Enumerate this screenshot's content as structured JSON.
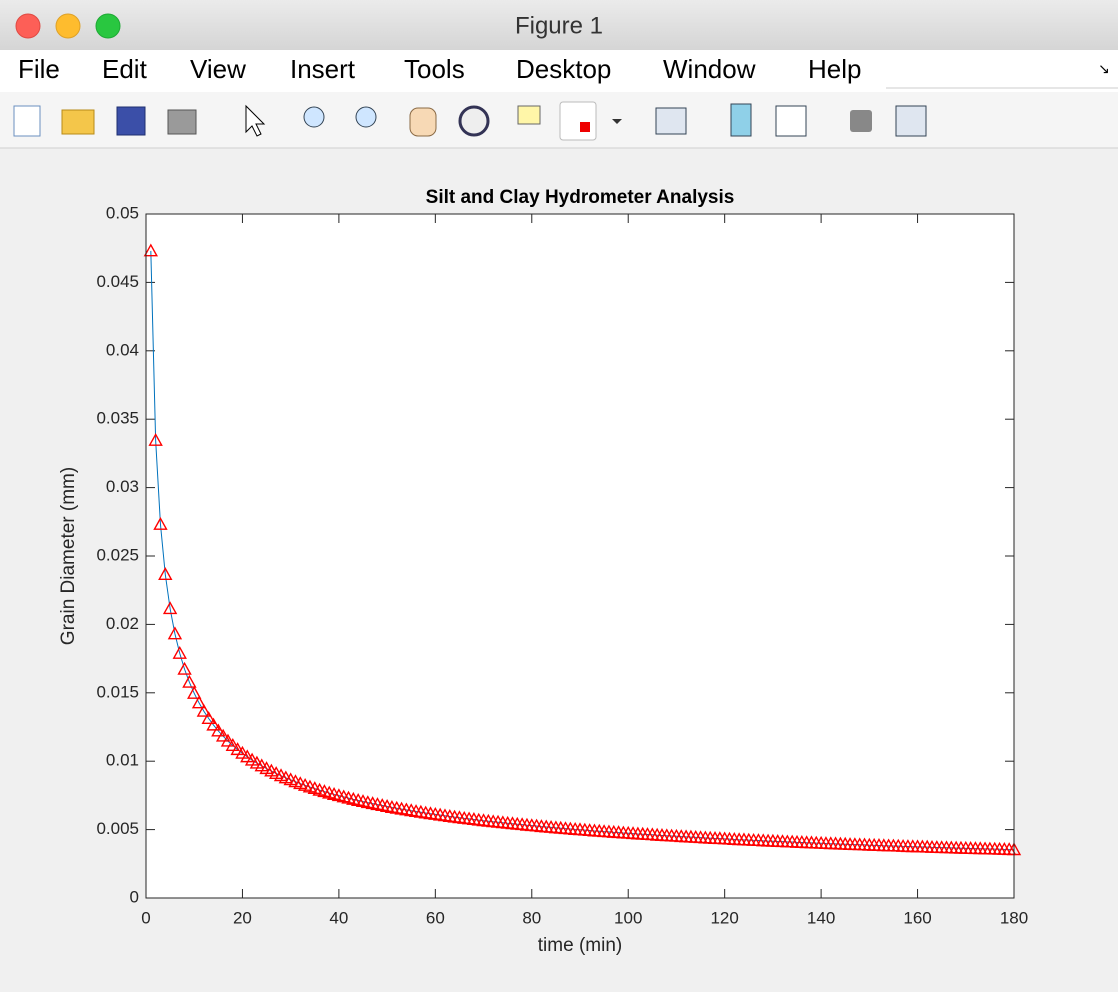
{
  "window": {
    "title": "Figure 1",
    "menu": [
      "File",
      "Edit",
      "View",
      "Insert",
      "Tools",
      "Desktop",
      "Window",
      "Help"
    ]
  },
  "chart_data": {
    "type": "line",
    "title": "Silt and Clay Hydrometer Analysis",
    "x_label": "time (min)",
    "y_label": "Grain Diameter (mm)",
    "line_color": "#0072bd",
    "marker": "triangle",
    "marker_color": "#ff0000",
    "xlim": [
      0,
      180
    ],
    "xticks": [
      0,
      20,
      40,
      60,
      80,
      100,
      120,
      140,
      160,
      180
    ],
    "ylim": [
      0,
      0.05
    ],
    "yticks": [
      0,
      0.005,
      0.01,
      0.015,
      0.02,
      0.025,
      0.03,
      0.035,
      0.04,
      0.045,
      0.05
    ],
    "grid": false,
    "x": [
      1,
      2,
      3,
      4,
      5,
      6,
      7,
      8,
      9,
      10,
      11,
      12,
      13,
      14,
      15,
      16,
      17,
      18,
      19,
      20,
      21,
      22,
      23,
      24,
      25,
      26,
      27,
      28,
      29,
      30,
      31,
      32,
      33,
      34,
      35,
      36,
      37,
      38,
      39,
      40,
      41,
      42,
      43,
      44,
      45,
      46,
      47,
      48,
      49,
      50,
      51,
      52,
      53,
      54,
      55,
      56,
      57,
      58,
      59,
      60,
      61,
      62,
      63,
      64,
      65,
      66,
      67,
      68,
      69,
      70,
      71,
      72,
      73,
      74,
      75,
      76,
      77,
      78,
      79,
      80,
      81,
      82,
      83,
      84,
      85,
      86,
      87,
      88,
      89,
      90,
      91,
      92,
      93,
      94,
      95,
      96,
      97,
      98,
      99,
      100,
      101,
      102,
      103,
      104,
      105,
      106,
      107,
      108,
      109,
      110,
      111,
      112,
      113,
      114,
      115,
      116,
      117,
      118,
      119,
      120,
      121,
      122,
      123,
      124,
      125,
      126,
      127,
      128,
      129,
      130,
      131,
      132,
      133,
      134,
      135,
      136,
      137,
      138,
      139,
      140,
      141,
      142,
      143,
      144,
      145,
      146,
      147,
      148,
      149,
      150,
      151,
      152,
      153,
      154,
      155,
      156,
      157,
      158,
      159,
      160,
      161,
      162,
      163,
      164,
      165,
      166,
      167,
      168,
      169,
      170,
      171,
      172,
      173,
      174,
      175,
      176,
      177,
      178,
      179,
      180
    ],
    "values": [
      0.0473,
      0.03345,
      0.02731,
      0.02365,
      0.02115,
      0.01931,
      0.01788,
      0.01672,
      0.01577,
      0.01496,
      0.01426,
      0.01365,
      0.01312,
      0.01264,
      0.01221,
      0.01183,
      0.01147,
      0.01115,
      0.01085,
      0.01058,
      0.01032,
      0.01008,
      0.00986,
      0.00966,
      0.00946,
      0.00928,
      0.0091,
      0.00894,
      0.00878,
      0.00864,
      0.0085,
      0.00836,
      0.00823,
      0.00811,
      0.008,
      0.00788,
      0.00778,
      0.00767,
      0.00757,
      0.00748,
      0.00739,
      0.0073,
      0.00721,
      0.00713,
      0.00705,
      0.00697,
      0.0069,
      0.00683,
      0.00676,
      0.00669,
      0.00662,
      0.00656,
      0.0065,
      0.00644,
      0.00638,
      0.00632,
      0.00627,
      0.00621,
      0.00616,
      0.00611,
      0.00606,
      0.00601,
      0.00596,
      0.00591,
      0.00587,
      0.00582,
      0.00578,
      0.00574,
      0.00569,
      0.00565,
      0.00561,
      0.00557,
      0.00554,
      0.0055,
      0.00546,
      0.00543,
      0.00539,
      0.00536,
      0.00532,
      0.00529,
      0.00526,
      0.00522,
      0.00519,
      0.00516,
      0.00513,
      0.0051,
      0.00507,
      0.00504,
      0.00501,
      0.00499,
      0.00496,
      0.00493,
      0.0049,
      0.00488,
      0.00485,
      0.00483,
      0.0048,
      0.00478,
      0.00475,
      0.00473,
      0.00471,
      0.00468,
      0.00466,
      0.00464,
      0.00462,
      0.00459,
      0.00457,
      0.00455,
      0.00453,
      0.00451,
      0.00449,
      0.00447,
      0.00445,
      0.00443,
      0.00441,
      0.00439,
      0.00437,
      0.00435,
      0.00434,
      0.00432,
      0.0043,
      0.00428,
      0.00426,
      0.00425,
      0.00423,
      0.00421,
      0.0042,
      0.00418,
      0.00416,
      0.00415,
      0.00413,
      0.00412,
      0.0041,
      0.00409,
      0.00407,
      0.00406,
      0.00404,
      0.00403,
      0.00401,
      0.004,
      0.00398,
      0.00397,
      0.00396,
      0.00394,
      0.00393,
      0.00391,
      0.0039,
      0.00389,
      0.00388,
      0.00386,
      0.00385,
      0.00384,
      0.00382,
      0.00381,
      0.0038,
      0.00379,
      0.00377,
      0.00376,
      0.00375,
      0.00374,
      0.00373,
      0.00372,
      0.0037,
      0.00369,
      0.00368,
      0.00367,
      0.00366,
      0.00365,
      0.00364,
      0.00363,
      0.00362,
      0.00361,
      0.0036,
      0.00359,
      0.00358,
      0.00357,
      0.00356,
      0.00355,
      0.00354,
      0.00353
    ]
  }
}
